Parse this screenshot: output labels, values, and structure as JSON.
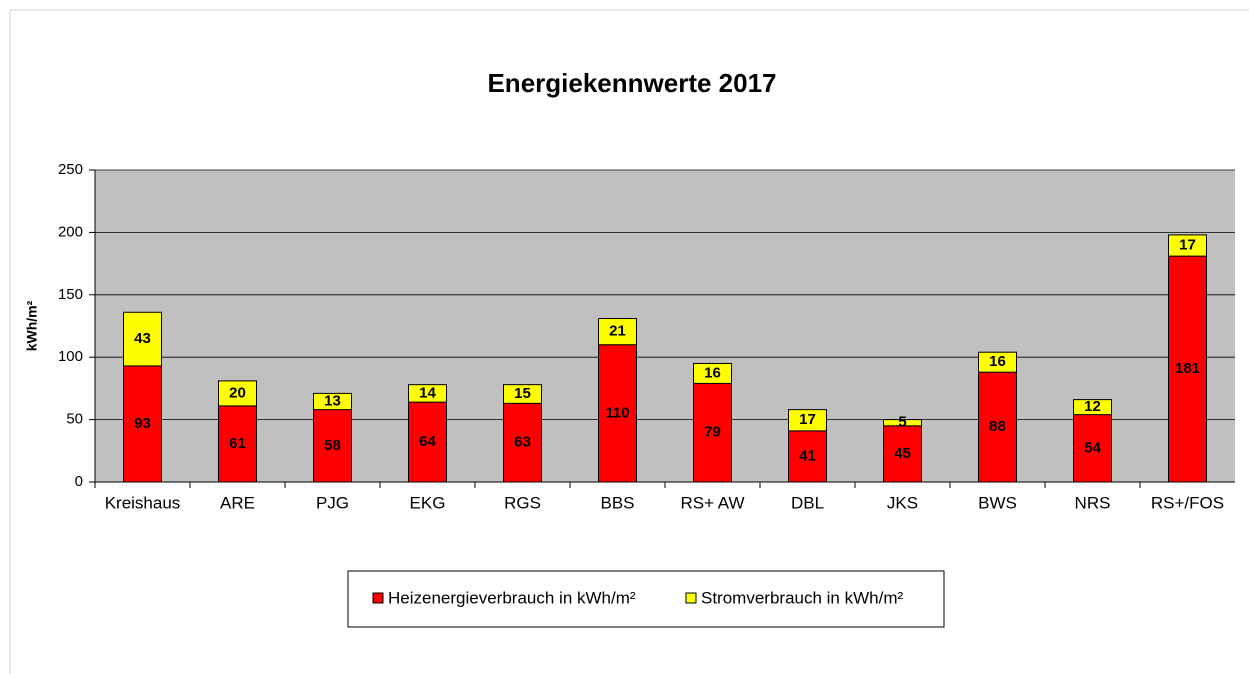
{
  "chart_data": {
    "type": "bar",
    "stacked": true,
    "title": "Energiekennwerte 2017",
    "y_label": "kWh/m²",
    "categories": [
      "Kreishaus",
      "ARE",
      "PJG",
      "EKG",
      "RGS",
      "BBS",
      "RS+ AW",
      "DBL",
      "JKS",
      "BWS",
      "NRS",
      "RS+/FOS"
    ],
    "series": [
      {
        "name": "Heizenergieverbrauch in kWh/m²",
        "color": "#ff0000",
        "values": [
          93,
          61,
          58,
          64,
          63,
          110,
          79,
          41,
          45,
          88,
          54,
          181
        ]
      },
      {
        "name": "Stromverbrauch in kWh/m²",
        "color": "#ffff00",
        "values": [
          43,
          20,
          13,
          14,
          15,
          21,
          16,
          17,
          5,
          16,
          12,
          17
        ]
      }
    ],
    "ylim": [
      0,
      250
    ],
    "yticks": [
      0,
      50,
      100,
      150,
      200,
      250
    ],
    "grid": true,
    "legend": "bottom"
  }
}
